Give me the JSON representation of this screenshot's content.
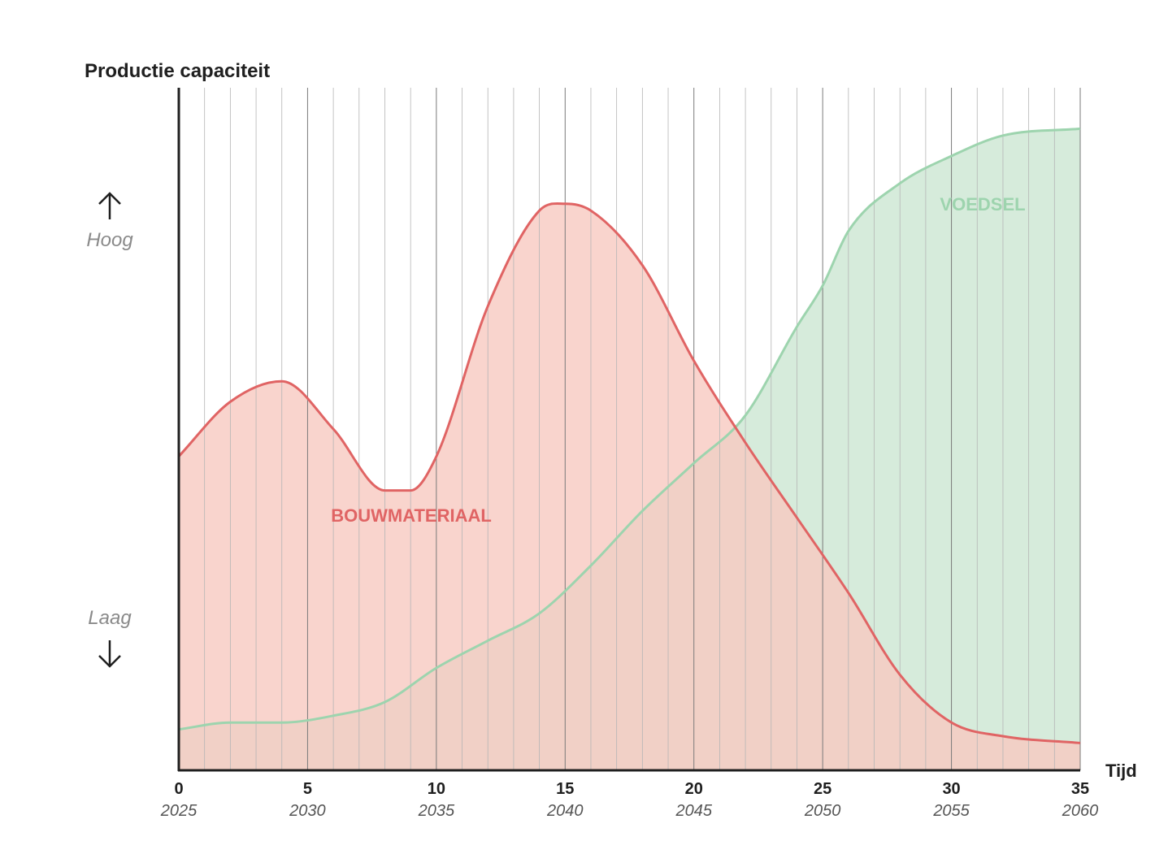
{
  "chart_data": {
    "type": "area",
    "ylabel": "Productie capaciteit",
    "xlabel": "Tijd",
    "y_level_high": "Hoog",
    "y_level_low": "Laag",
    "xlim": [
      0,
      35
    ],
    "ylim": [
      0,
      1
    ],
    "x_ticks": [
      0,
      5,
      10,
      15,
      20,
      25,
      30,
      35
    ],
    "x_tick_labels": [
      "0",
      "5",
      "10",
      "15",
      "20",
      "25",
      "30",
      "35"
    ],
    "x_tick_years": [
      "2025",
      "2030",
      "2035",
      "2040",
      "2045",
      "2050",
      "2055",
      "2060"
    ],
    "grid": "vertical minor lines every 1 unit, major every 5 units",
    "series": [
      {
        "name": "BOUWMATERIAAL",
        "color": "#e06464",
        "fill": "#f7c9c0",
        "x": [
          0,
          2,
          4,
          6,
          8,
          9,
          10,
          12,
          14,
          15,
          16,
          18,
          20,
          22,
          24,
          26,
          28,
          30,
          32,
          35
        ],
        "y": [
          0.46,
          0.54,
          0.57,
          0.5,
          0.41,
          0.41,
          0.46,
          0.68,
          0.82,
          0.83,
          0.82,
          0.74,
          0.6,
          0.48,
          0.37,
          0.26,
          0.14,
          0.07,
          0.05,
          0.04
        ]
      },
      {
        "name": "VOEDSEL",
        "color": "#9dd4ae",
        "fill": "#d4ead9",
        "x": [
          0,
          2,
          4,
          6,
          8,
          10,
          12,
          14,
          16,
          18,
          20,
          22,
          24,
          25,
          26,
          28,
          30,
          32,
          35
        ],
        "y": [
          0.06,
          0.07,
          0.07,
          0.08,
          0.1,
          0.15,
          0.19,
          0.23,
          0.3,
          0.38,
          0.45,
          0.52,
          0.65,
          0.71,
          0.79,
          0.86,
          0.9,
          0.93,
          0.94
        ]
      }
    ],
    "colors": {
      "axis": "#1f1f1f",
      "grid": "#9a9a9a",
      "text": "#1f1f1f",
      "muted": "#8a8a8a"
    }
  }
}
